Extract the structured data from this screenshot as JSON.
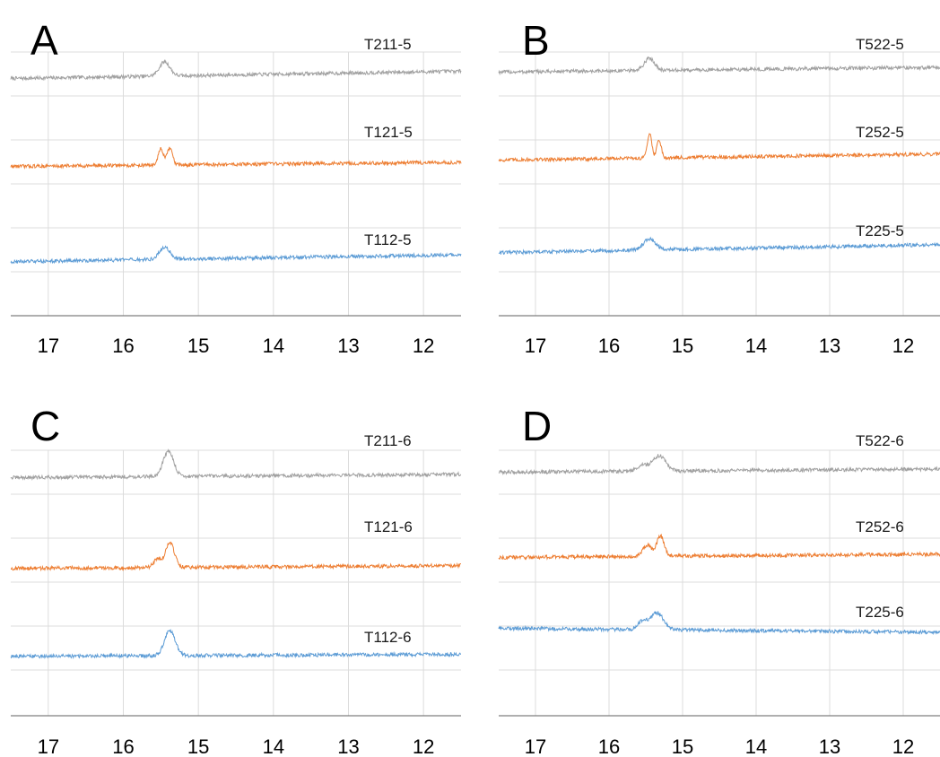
{
  "chart_data": [
    {
      "panel": "A",
      "type": "line",
      "x_ticks": [
        17,
        16,
        15,
        14,
        13,
        12
      ],
      "xlim": [
        17.5,
        11.5
      ],
      "grid": true,
      "series": [
        {
          "name": "T211-5",
          "color": "#a0a0a0",
          "baseline_start": 0.1,
          "baseline_end": 0.28,
          "peaks": [
            {
              "x": 15.45,
              "height": 0.35,
              "width": 0.07
            }
          ]
        },
        {
          "name": "T121-5",
          "color": "#ed7d31",
          "baseline_start": 0.1,
          "baseline_end": 0.2,
          "peaks": [
            {
              "x": 15.5,
              "height": 0.4,
              "width": 0.035
            },
            {
              "x": 15.38,
              "height": 0.42,
              "width": 0.035
            }
          ]
        },
        {
          "name": "T112-5",
          "color": "#5b9bd5",
          "baseline_start": 0.05,
          "baseline_end": 0.22,
          "peaks": [
            {
              "x": 15.45,
              "height": 0.3,
              "width": 0.07
            }
          ]
        }
      ]
    },
    {
      "panel": "B",
      "type": "line",
      "x_ticks": [
        17,
        16,
        15,
        14,
        13,
        12
      ],
      "xlim": [
        17.5,
        11.5
      ],
      "grid": true,
      "series": [
        {
          "name": "T522-5",
          "color": "#a0a0a0",
          "baseline_start": 0.08,
          "baseline_end": 0.2,
          "peaks": [
            {
              "x": 15.45,
              "height": 0.3,
              "width": 0.07
            }
          ]
        },
        {
          "name": "T252-5",
          "color": "#ed7d31",
          "baseline_start": 0.1,
          "baseline_end": 0.25,
          "peaks": [
            {
              "x": 15.45,
              "height": 0.62,
              "width": 0.03
            },
            {
              "x": 15.32,
              "height": 0.45,
              "width": 0.03
            }
          ]
        },
        {
          "name": "T225-5",
          "color": "#5b9bd5",
          "baseline_start": 0.05,
          "baseline_end": 0.25,
          "peaks": [
            {
              "x": 15.45,
              "height": 0.28,
              "width": 0.08
            }
          ]
        }
      ]
    },
    {
      "panel": "C",
      "type": "line",
      "x_ticks": [
        17,
        16,
        15,
        14,
        13,
        12
      ],
      "xlim": [
        17.5,
        11.5
      ],
      "grid": true,
      "series": [
        {
          "name": "T211-6",
          "color": "#a0a0a0",
          "baseline_start": 0.1,
          "baseline_end": 0.18,
          "peaks": [
            {
              "x": 15.4,
              "height": 0.62,
              "width": 0.07
            }
          ]
        },
        {
          "name": "T121-6",
          "color": "#ed7d31",
          "baseline_start": 0.05,
          "baseline_end": 0.12,
          "peaks": [
            {
              "x": 15.38,
              "height": 0.62,
              "width": 0.06
            },
            {
              "x": 15.55,
              "height": 0.2,
              "width": 0.05
            }
          ]
        },
        {
          "name": "T112-6",
          "color": "#5b9bd5",
          "baseline_start": 0.05,
          "baseline_end": 0.1,
          "peaks": [
            {
              "x": 15.38,
              "height": 0.62,
              "width": 0.07
            }
          ]
        }
      ]
    },
    {
      "panel": "D",
      "type": "line",
      "x_ticks": [
        17,
        16,
        15,
        14,
        13,
        12
      ],
      "xlim": [
        17.5,
        11.5
      ],
      "grid": true,
      "series": [
        {
          "name": "T522-6",
          "color": "#a0a0a0",
          "baseline_start": 0.1,
          "baseline_end": 0.18,
          "peaks": [
            {
              "x": 15.32,
              "height": 0.38,
              "width": 0.09
            },
            {
              "x": 15.55,
              "height": 0.14,
              "width": 0.07
            }
          ]
        },
        {
          "name": "T252-6",
          "color": "#ed7d31",
          "baseline_start": 0.1,
          "baseline_end": 0.18,
          "peaks": [
            {
              "x": 15.3,
              "height": 0.5,
              "width": 0.05
            },
            {
              "x": 15.48,
              "height": 0.28,
              "width": 0.06
            }
          ]
        },
        {
          "name": "T225-6",
          "color": "#5b9bd5",
          "baseline_start": 0.1,
          "baseline_end": 0.0,
          "peaks": [
            {
              "x": 15.35,
              "height": 0.42,
              "width": 0.09
            },
            {
              "x": 15.55,
              "height": 0.2,
              "width": 0.06
            }
          ]
        }
      ]
    }
  ]
}
